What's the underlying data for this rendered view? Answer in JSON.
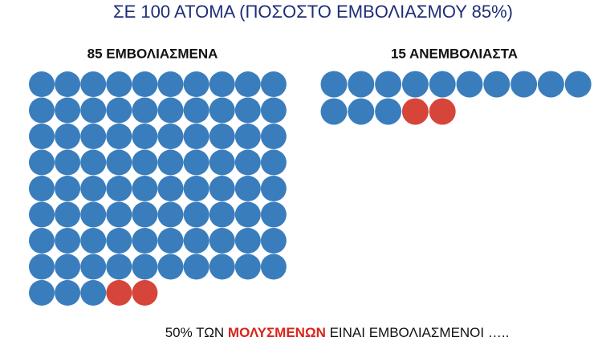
{
  "title": "ΣΕ 100 ΑΤΟΜΑ (ΠΟΣΟΣΤΟ ΕΜΒΟΛΙΑΣΜΟΥ 85%)",
  "groups": [
    {
      "label": "85 ΕΜΒΟΛΙΑΣΜΕΝΑ",
      "total": 85,
      "infected": 2
    },
    {
      "label": "15 ΑΝΕΜΒΟΛΙΑΣΤΑ",
      "total": 15,
      "infected": 2
    }
  ],
  "colors": {
    "person": "#3a7dbd",
    "infected": "#d6453a"
  },
  "footer": {
    "before": "50% ΤΩΝ ",
    "highlight": "ΜΟΛΥΣΜΕΝΩΝ",
    "after": " ΕΙΝΑΙ ΕΜΒΟΛΙΑΣΜΕΝΟΙ ….."
  }
}
